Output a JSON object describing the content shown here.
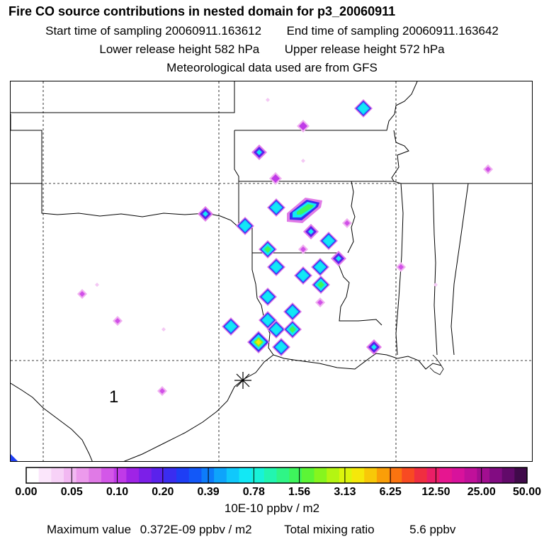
{
  "header": {
    "title": "Fire CO source contributions in nested domain for p3_20060911",
    "start_time_label": "Start time of sampling",
    "start_time_value": "20060911.163612",
    "end_time_label": "End time of sampling",
    "end_time_value": "20060911.163642",
    "lower_height_label": "Lower release height",
    "lower_height_value": "582 hPa",
    "upper_height_label": "Upper release height",
    "upper_height_value": "572 hPa",
    "met_note": "Meteorological data used are from GFS"
  },
  "map": {
    "label_number": "1",
    "release_marker": "asterisk-marker",
    "grid_lines": true
  },
  "colorbar": {
    "colors": [
      "#ffffff",
      "#fbe6fb",
      "#f7d2f7",
      "#f2b8f2",
      "#ec9aec",
      "#e07ae6",
      "#d357e8",
      "#c03ae8",
      "#9f23e6",
      "#7c1fe8",
      "#5a22ec",
      "#3a2df0",
      "#1e3ef5",
      "#1258f8",
      "#0d7cfa",
      "#0ea4fb",
      "#10c8fb",
      "#12e8f5",
      "#18f2d8",
      "#22f5b0",
      "#2ff586",
      "#3ef55c",
      "#5cf536",
      "#86f51e",
      "#b4f512",
      "#dcf50c",
      "#f5e80a",
      "#f8c808",
      "#fa9e08",
      "#fb7410",
      "#f84a22",
      "#f02e40",
      "#ea1e66",
      "#e61690",
      "#d8129c",
      "#c0109a",
      "#a20e90",
      "#820c82",
      "#620a6a",
      "#400a4a"
    ],
    "tick_labels": [
      "0.00",
      "0.05",
      "0.10",
      "0.20",
      "0.39",
      "0.78",
      "1.56",
      "3.13",
      "6.25",
      "12.50",
      "25.00",
      "50.00"
    ],
    "units": "10E-10 ppbv / m2"
  },
  "footer": {
    "max_label": "Maximum value",
    "max_value": "0.372E-09 ppbv / m2",
    "total_label": "Total mixing ratio",
    "total_value": "5.6 ppbv"
  },
  "cells": [
    {
      "lon": 512,
      "lat": 152,
      "level": 4
    },
    {
      "lon": 427,
      "lat": 177,
      "level": 2
    },
    {
      "lon": 365,
      "lat": 214,
      "level": 3
    },
    {
      "lon": 388,
      "lat": 251,
      "level": 2
    },
    {
      "lon": 688,
      "lat": 238,
      "level": 1
    },
    {
      "lon": 389,
      "lat": 292,
      "level": 4
    },
    {
      "lon": 289,
      "lat": 301,
      "level": 3
    },
    {
      "lon": 345,
      "lat": 318,
      "level": 4
    },
    {
      "lon": 438,
      "lat": 326,
      "level": 3
    },
    {
      "lon": 489,
      "lat": 314,
      "level": 1
    },
    {
      "lon": 377,
      "lat": 351,
      "level": 5
    },
    {
      "lon": 463,
      "lat": 339,
      "level": 4
    },
    {
      "lon": 427,
      "lat": 351,
      "level": 1
    },
    {
      "lon": 389,
      "lat": 376,
      "level": 4
    },
    {
      "lon": 477,
      "lat": 364,
      "level": 3
    },
    {
      "lon": 427,
      "lat": 388,
      "level": 4
    },
    {
      "lon": 451,
      "lat": 376,
      "level": 4
    },
    {
      "lon": 452,
      "lat": 401,
      "level": 5
    },
    {
      "lon": 565,
      "lat": 376,
      "level": 1
    },
    {
      "lon": 377,
      "lat": 418,
      "level": 4
    },
    {
      "lon": 412,
      "lat": 439,
      "level": 4
    },
    {
      "lon": 451,
      "lat": 426,
      "level": 1
    },
    {
      "lon": 377,
      "lat": 451,
      "level": 4
    },
    {
      "lon": 325,
      "lat": 460,
      "level": 4
    },
    {
      "lon": 389,
      "lat": 464,
      "level": 4
    },
    {
      "lon": 412,
      "lat": 464,
      "level": 5
    },
    {
      "lon": 364,
      "lat": 482,
      "level": 6
    },
    {
      "lon": 396,
      "lat": 489,
      "level": 4
    },
    {
      "lon": 527,
      "lat": 489,
      "level": 3
    },
    {
      "lon": 115,
      "lat": 414,
      "level": 1
    },
    {
      "lon": 165,
      "lat": 452,
      "level": 1
    },
    {
      "lon": 228,
      "lat": 551,
      "level": 1
    },
    {
      "lon": 230,
      "lat": 464,
      "level": 0
    },
    {
      "lon": 136,
      "lat": 401,
      "level": 0
    },
    {
      "lon": 427,
      "lat": 226,
      "level": 0
    },
    {
      "lon": 377,
      "lat": 140,
      "level": 0
    },
    {
      "lon": 614,
      "lat": 401,
      "level": 0
    }
  ]
}
